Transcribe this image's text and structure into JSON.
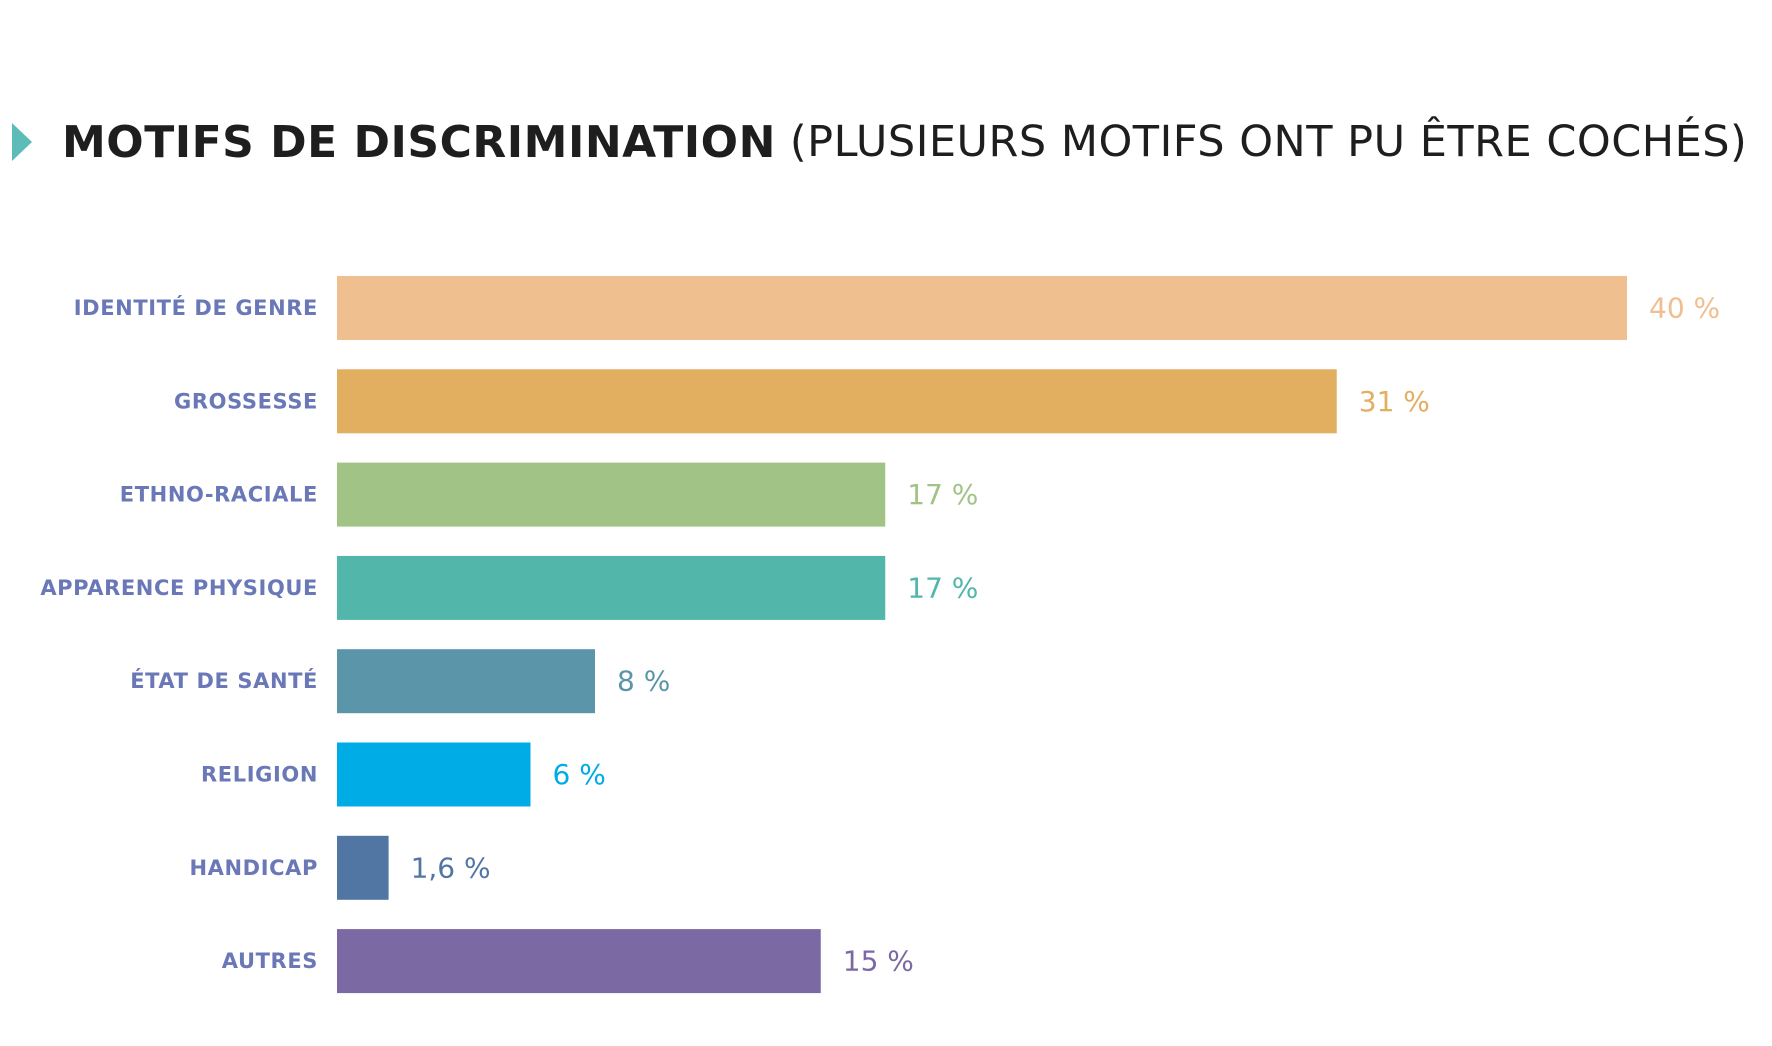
{
  "title": {
    "main": "MOTIFS DE DISCRIMINATION",
    "sub": "(PLUSIEURS MOTIFS ONT PU ÊTRE COCHÉS)"
  },
  "chart_data": {
    "type": "bar",
    "orientation": "horizontal",
    "title": "MOTIFS DE DISCRIMINATION (PLUSIEURS MOTIFS ONT PU ÊTRE COCHÉS)",
    "categories": [
      "IDENTITÉ DE GENRE",
      "GROSSESSE",
      "ETHNO-RACIALE",
      "APPARENCE PHYSIQUE",
      "ÉTAT DE SANTÉ",
      "RELIGION",
      "HANDICAP",
      "AUTRES"
    ],
    "values": [
      40,
      31,
      17,
      17,
      8,
      6,
      1.6,
      15
    ],
    "value_labels": [
      "40 %",
      "31 %",
      "17 %",
      "17 %",
      "8 %",
      "6 %",
      "1,6 %",
      "15 %"
    ],
    "colors": [
      "#f0bf8f",
      "#e2ae60",
      "#a1c486",
      "#52b6ab",
      "#5b95a9",
      "#00ace6",
      "#5276a4",
      "#7a69a3"
    ],
    "xlim": [
      0,
      40
    ],
    "grid": false,
    "legend": "none",
    "xlabel": "",
    "ylabel": ""
  },
  "colors": {
    "title_marker": "#5bbcb8",
    "category_label": "#6a78b8",
    "title_text": "#1e1e1e"
  }
}
